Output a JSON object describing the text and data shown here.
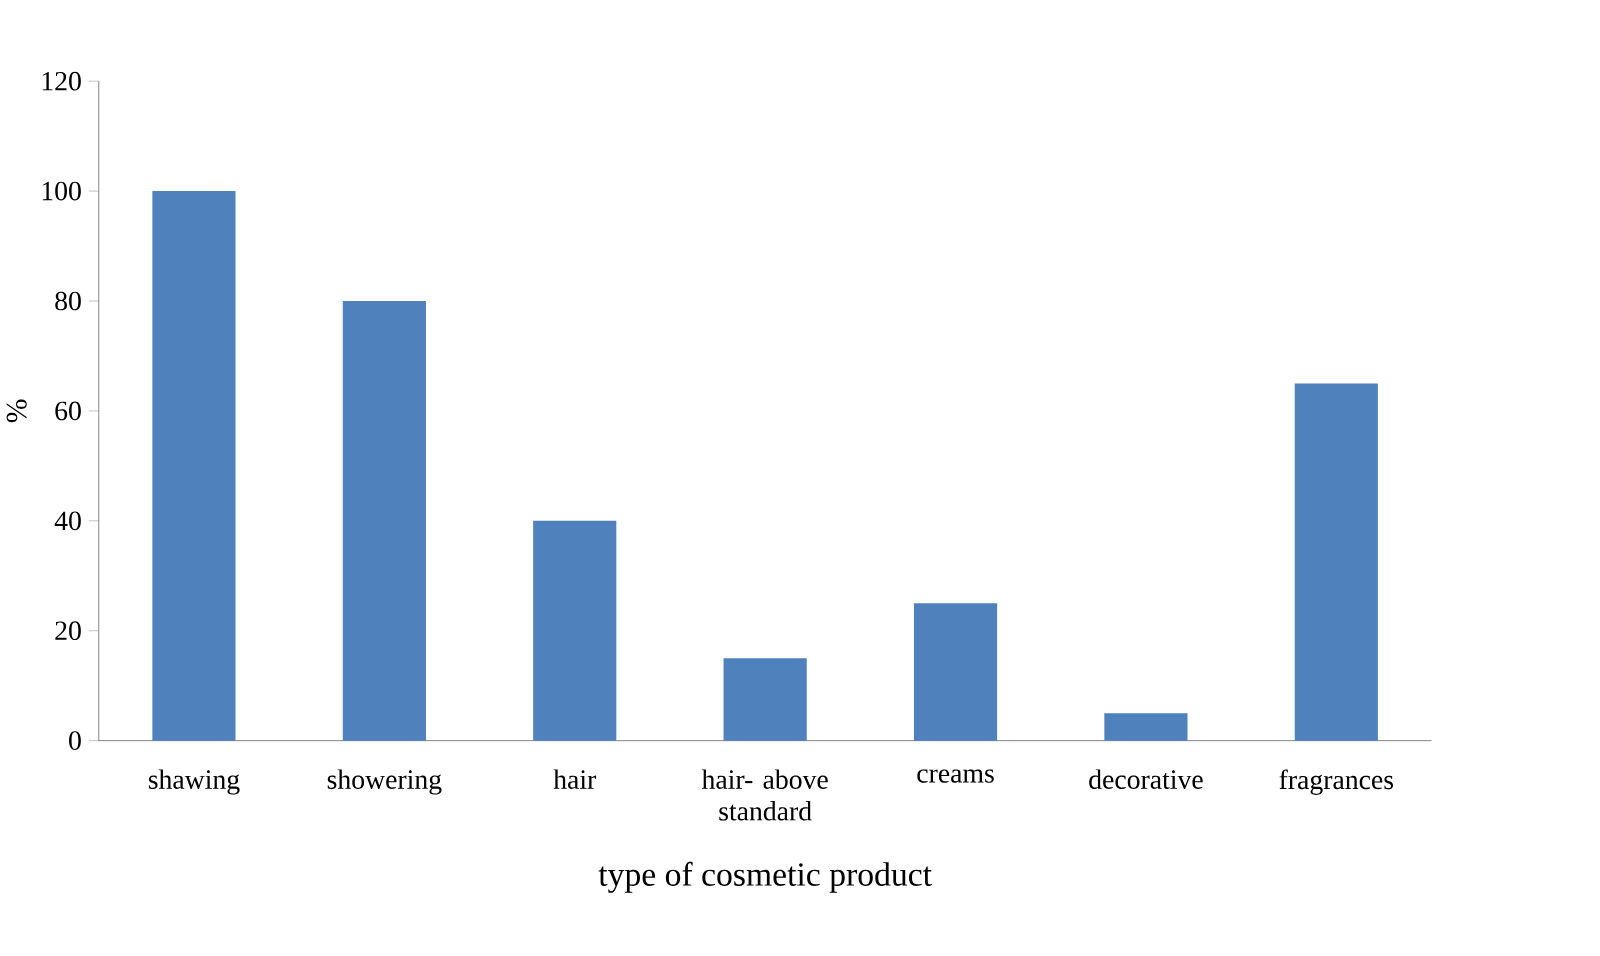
{
  "chart_data": {
    "type": "bar",
    "xlabel": "type of cosmetic product",
    "ylabel": "%",
    "categories": [
      "shawing",
      "showering",
      "hair",
      "hair- above standard",
      "creams",
      "decorative",
      "fragrances"
    ],
    "values": [
      100,
      80,
      40,
      15,
      25,
      5,
      65
    ],
    "color": "#4f81bd",
    "ylim": [
      0,
      120
    ],
    "yticks": [
      0,
      20,
      40,
      60,
      80,
      100,
      120
    ]
  }
}
